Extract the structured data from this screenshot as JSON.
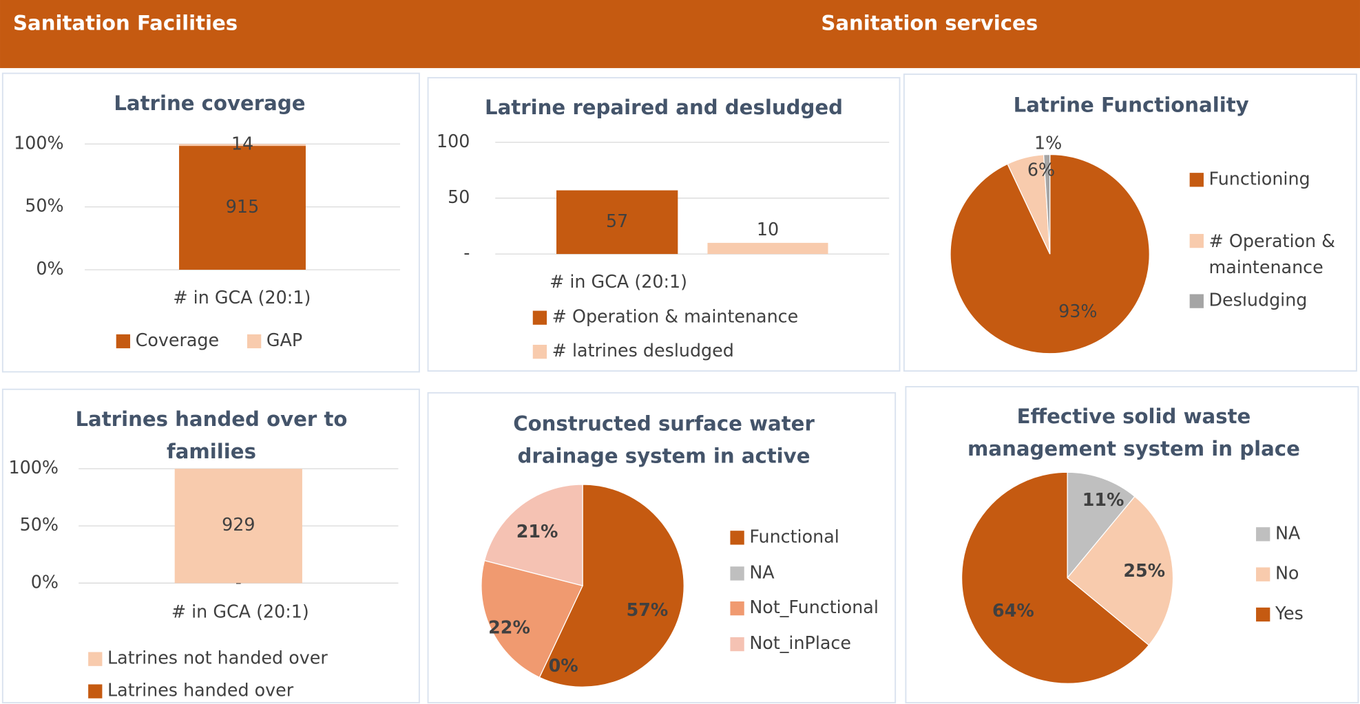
{
  "header": {
    "left": "Sanitation Facilities",
    "right": "Sanitation services"
  },
  "chart_data": [
    {
      "type": "bar_stacked_percent",
      "title": "Latrine coverage",
      "categories": [
        "# in GCA (20:1)"
      ],
      "series": [
        {
          "name": "Coverage",
          "color": "#c55a11",
          "values": [
            915
          ]
        },
        {
          "name": "GAP",
          "color": "#f8cbad",
          "values": [
            14
          ]
        }
      ],
      "ylim": [
        0,
        100
      ],
      "yticks": [
        {
          "value": 0,
          "label": "0%"
        },
        {
          "value": 50,
          "label": "50%"
        },
        {
          "value": 100,
          "label": "100%"
        }
      ],
      "grid": true,
      "legend": "bottom"
    },
    {
      "type": "bar",
      "title": "Latrine repaired and desludged",
      "categories": [
        "# in GCA (20:1)"
      ],
      "series": [
        {
          "name": "# Operation & maintenance",
          "color": "#c55a11",
          "values": [
            57
          ]
        },
        {
          "name": "# latrines desludged",
          "color": "#f8cbad",
          "values": [
            10
          ]
        }
      ],
      "ylim": [
        0,
        100
      ],
      "yticks": [
        {
          "value": 0,
          "label": "-"
        },
        50,
        100
      ],
      "grid": true,
      "legend": "bottom"
    },
    {
      "type": "pie",
      "title": "Latrine Functionality",
      "labels": [
        "Functioning",
        "# Operation & maintenance",
        "Desludging"
      ],
      "values": [
        93,
        6,
        1
      ],
      "value_labels": [
        "93%",
        "6%",
        "1%"
      ],
      "colors": [
        "#c55a11",
        "#f8cbad",
        "#a5a5a5"
      ],
      "legend": "right"
    },
    {
      "type": "bar_stacked_percent",
      "title": "Latrines handed over to families",
      "categories": [
        "# in GCA (20:1)"
      ],
      "series": [
        {
          "name": "Latrines not handed over",
          "color": "#f8cbad",
          "values": [
            929
          ]
        },
        {
          "name": "Latrines handed over",
          "color": "#c55a11",
          "values": [
            0
          ],
          "value_labels": [
            "-"
          ]
        }
      ],
      "ylim": [
        0,
        100
      ],
      "yticks": [
        {
          "value": 0,
          "label": "0%"
        },
        {
          "value": 50,
          "label": "50%"
        },
        {
          "value": 100,
          "label": "100%"
        }
      ],
      "grid": true,
      "legend": "bottom"
    },
    {
      "type": "pie",
      "title": "Constructed surface water drainage system in active camps",
      "labels": [
        "Functional",
        "NA",
        "Not_Functional",
        "Not_inPlace"
      ],
      "values": [
        57,
        0,
        22,
        21
      ],
      "value_labels": [
        "57%",
        "0%",
        "22%",
        "21%"
      ],
      "colors": [
        "#c55a11",
        "#bfbfbf",
        "#f09a70",
        "#f5c2b3"
      ],
      "legend": "right"
    },
    {
      "type": "pie",
      "title": "Effective solid waste management system in place",
      "labels": [
        "NA",
        "No",
        "Yes"
      ],
      "values": [
        11,
        25,
        64
      ],
      "value_labels": [
        "11%",
        "25%",
        "64%"
      ],
      "colors": [
        "#bfbfbf",
        "#f8cbad",
        "#c55a11"
      ],
      "legend": "right"
    }
  ]
}
